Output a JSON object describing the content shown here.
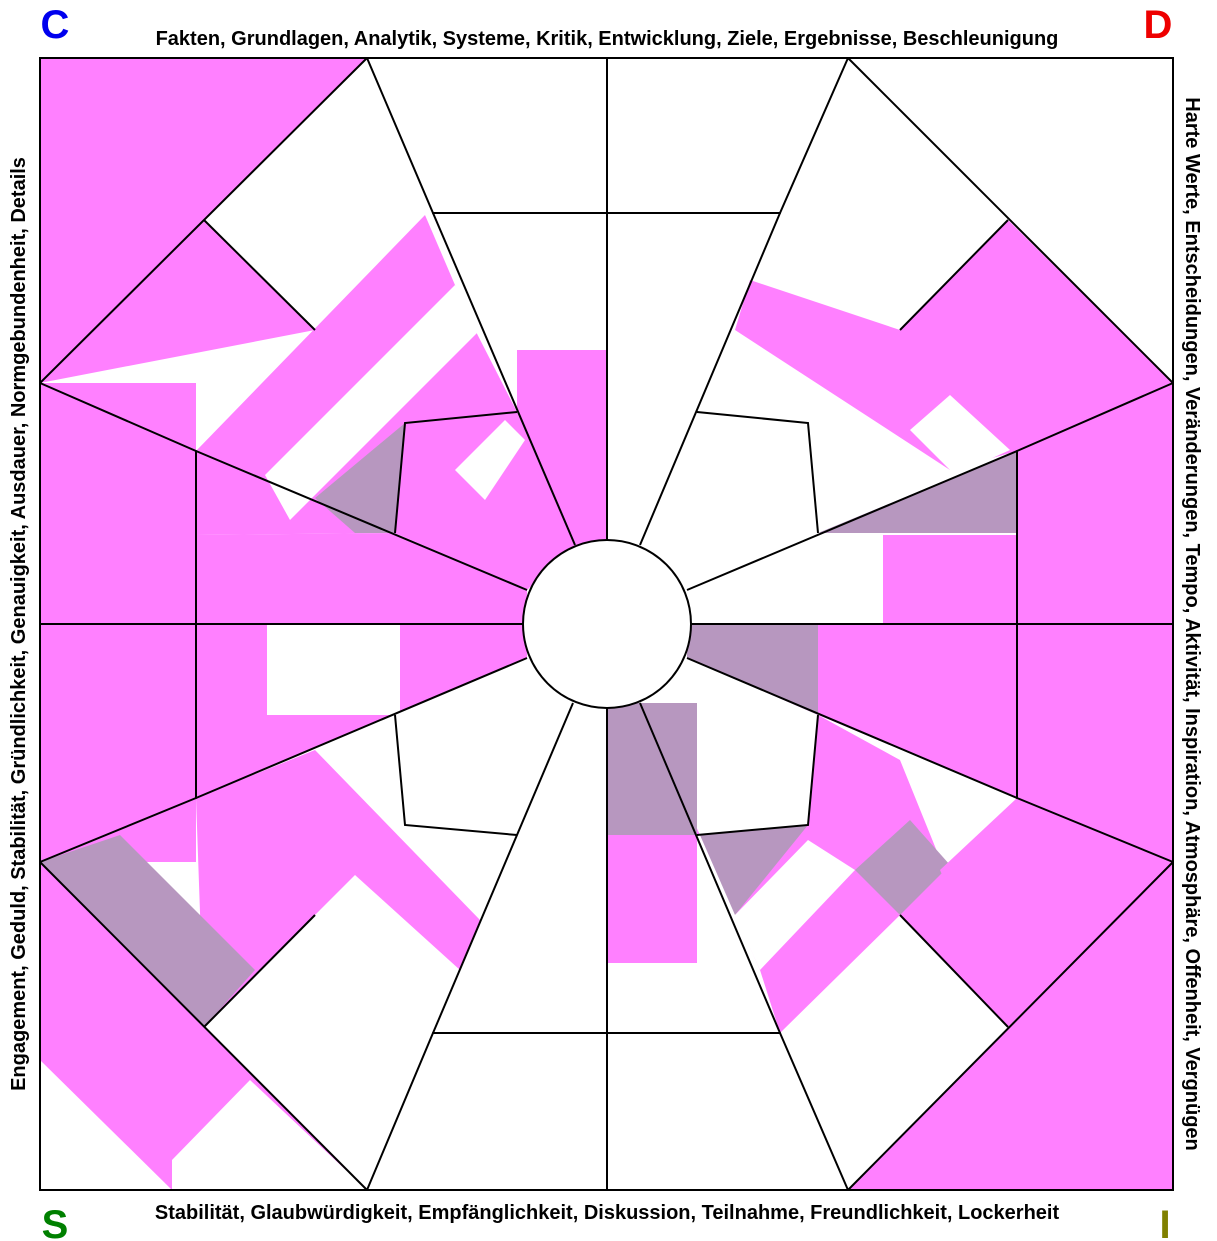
{
  "corners": {
    "top_left": "C",
    "top_right": "D",
    "bottom_left": "S",
    "bottom_right": "I"
  },
  "labels": {
    "top": "Fakten, Grundlagen, Analytik, Systeme, Kritik, Entwicklung, Ziele, Ergebnisse, Beschleunigung",
    "right": "Harte Werte, Entscheidungen, Veränderungen, Tempo, Aktivität, Inspiration, Atmosphäre, Offenheit, Vergnügen",
    "bottom": "Stabilität, Glaubwürdigkeit, Empfänglichkeit, Diskussion, Teilnahme, Freundlichkeit, Lockerheit",
    "left": "Engagement, Geduld, Stabilität, Gründlichkeit, Genauigkeit, Ausdauer, Normgebundenheit, Details"
  }
}
